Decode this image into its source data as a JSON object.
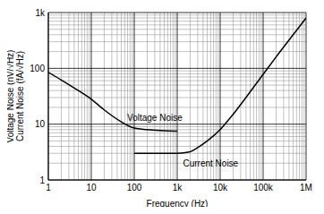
{
  "chart_data": {
    "type": "line",
    "log": true,
    "grid": true,
    "legend": false,
    "xlabel": "Frequency (Hz)",
    "ylabel": [
      "Voltage Noise (nV/√Hz)",
      "Current Noise (fA/√Hz)"
    ],
    "xlim": [
      1,
      1000000
    ],
    "ylim": [
      1,
      1000
    ],
    "xticks": [
      1,
      10,
      100,
      {
        "value": 1000,
        "label": "1k"
      },
      {
        "value": 10000,
        "label": "10k"
      },
      {
        "value": 100000,
        "label": "100k"
      },
      {
        "value": 1000000,
        "label": "1M"
      }
    ],
    "yticks": [
      1,
      10,
      100,
      {
        "value": 1000,
        "label": "1k"
      }
    ],
    "series": [
      {
        "name": "Voltage Noise",
        "color": "#000000",
        "x": [
          1,
          2,
          5,
          10,
          20,
          50,
          100,
          200,
          500,
          1000
        ],
        "values": [
          85,
          62,
          40,
          28,
          18,
          11,
          8.5,
          8,
          7.6,
          7.5
        ]
      },
      {
        "name": "Current Noise",
        "color": "#000000",
        "x": [
          100,
          1000,
          2000,
          3000,
          5000,
          10000,
          20000,
          50000,
          100000,
          200000,
          500000,
          1000000
        ],
        "values": [
          3,
          3,
          3.2,
          3.8,
          5,
          8,
          15,
          38,
          78,
          160,
          400,
          800
        ]
      }
    ],
    "annotations": [
      {
        "text": "Voltage Noise",
        "x": 300,
        "y": 13
      },
      {
        "text": "Current Noise",
        "x": 6000,
        "y": 2
      }
    ]
  }
}
